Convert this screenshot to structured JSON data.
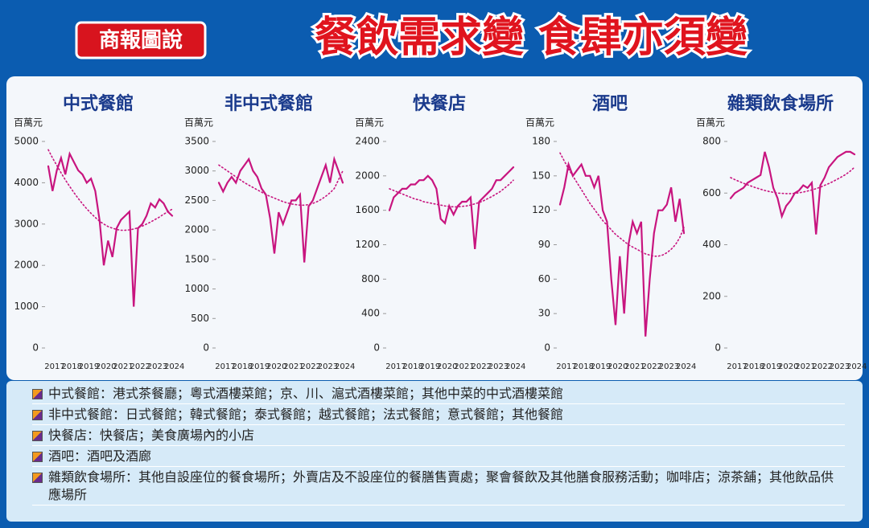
{
  "header": {
    "badge": "商報圖說",
    "title": "餐飲需求變 食肆亦須變"
  },
  "chart_data": [
    {
      "type": "line",
      "title": "中式餐館",
      "ylabel": "百萬元",
      "ylim": [
        0,
        5000
      ],
      "yticks": [
        0,
        1000,
        2000,
        3000,
        4000,
        5000
      ],
      "grid": false,
      "categories": [
        "2017",
        null,
        null,
        null,
        "2018",
        null,
        null,
        null,
        "2019",
        null,
        null,
        null,
        "2020",
        null,
        null,
        null,
        "2021",
        null,
        null,
        null,
        "2022",
        null,
        null,
        null,
        "2023",
        null,
        null,
        null,
        "2024",
        null
      ],
      "series": [
        {
          "color": "#c8157f",
          "values": [
            4400,
            3800,
            4300,
            4600,
            4200,
            4700,
            4500,
            4300,
            4200,
            4000,
            4100,
            3800,
            3100,
            2000,
            2600,
            2200,
            2900,
            3100,
            3200,
            3300,
            1000,
            2900,
            3000,
            3200,
            3500,
            3400,
            3600,
            3500,
            3300,
            3200
          ]
        },
        {
          "color": "#c8157f",
          "dotted": true,
          "values": [
            4800,
            4600,
            4420,
            4240,
            4070,
            3910,
            3760,
            3620,
            3490,
            3370,
            3260,
            3160,
            3070,
            3000,
            2940,
            2900,
            2870,
            2850,
            2850,
            2860,
            2880,
            2910,
            2950,
            3000,
            3050,
            3110,
            3170,
            3240,
            3300,
            3360
          ]
        }
      ]
    },
    {
      "type": "line",
      "title": "非中式餐館",
      "ylabel": "百萬元",
      "ylim": [
        0,
        3500
      ],
      "yticks": [
        0,
        500,
        1000,
        1500,
        2000,
        2500,
        3000,
        3500
      ],
      "grid": false,
      "categories": [
        "2017",
        null,
        null,
        null,
        "2018",
        null,
        null,
        null,
        "2019",
        null,
        null,
        null,
        "2020",
        null,
        null,
        null,
        "2021",
        null,
        null,
        null,
        "2022",
        null,
        null,
        null,
        "2023",
        null,
        null,
        null,
        "2024",
        null
      ],
      "series": [
        {
          "color": "#c8157f",
          "values": [
            2800,
            2650,
            2800,
            2900,
            2800,
            3000,
            3100,
            3200,
            3000,
            2900,
            2700,
            2600,
            2200,
            1600,
            2300,
            2100,
            2300,
            2500,
            2500,
            2600,
            1450,
            2400,
            2500,
            2700,
            2900,
            3100,
            2800,
            3200,
            3000,
            2800
          ]
        },
        {
          "color": "#c8157f",
          "dotted": true,
          "values": [
            3100,
            3050,
            3000,
            2950,
            2900,
            2850,
            2800,
            2760,
            2720,
            2680,
            2640,
            2600,
            2570,
            2540,
            2510,
            2480,
            2460,
            2440,
            2430,
            2420,
            2420,
            2430,
            2450,
            2480,
            2520,
            2570,
            2630,
            2700,
            2850,
            3000
          ]
        }
      ]
    },
    {
      "type": "line",
      "title": "快餐店",
      "ylabel": "百萬元",
      "ylim": [
        0,
        2400
      ],
      "yticks": [
        0,
        400,
        800,
        1200,
        1600,
        2000,
        2400
      ],
      "grid": false,
      "categories": [
        "2017",
        null,
        null,
        null,
        "2018",
        null,
        null,
        null,
        "2019",
        null,
        null,
        null,
        "2020",
        null,
        null,
        null,
        "2021",
        null,
        null,
        null,
        "2022",
        null,
        null,
        null,
        "2023",
        null,
        null,
        null,
        "2024",
        null
      ],
      "series": [
        {
          "color": "#c8157f",
          "values": [
            1600,
            1750,
            1800,
            1850,
            1850,
            1900,
            1900,
            1950,
            1950,
            2000,
            1950,
            1850,
            1500,
            1450,
            1650,
            1550,
            1650,
            1700,
            1700,
            1750,
            1150,
            1700,
            1750,
            1800,
            1850,
            1950,
            1950,
            2000,
            2050,
            2100
          ]
        },
        {
          "color": "#c8157f",
          "dotted": true,
          "values": [
            1850,
            1830,
            1810,
            1790,
            1770,
            1750,
            1730,
            1720,
            1700,
            1690,
            1680,
            1670,
            1660,
            1650,
            1645,
            1640,
            1640,
            1645,
            1650,
            1660,
            1675,
            1690,
            1710,
            1735,
            1760,
            1790,
            1820,
            1860,
            1900,
            1950
          ]
        }
      ]
    },
    {
      "type": "line",
      "title": "酒吧",
      "ylabel": "百萬元",
      "ylim": [
        0,
        180
      ],
      "yticks": [
        0,
        30,
        60,
        90,
        120,
        150,
        180
      ],
      "grid": false,
      "categories": [
        "2017",
        null,
        null,
        null,
        "2018",
        null,
        null,
        null,
        "2019",
        null,
        null,
        null,
        "2020",
        null,
        null,
        null,
        "2021",
        null,
        null,
        null,
        "2022",
        null,
        null,
        null,
        "2023",
        null,
        null,
        null,
        "2024",
        null
      ],
      "series": [
        {
          "color": "#c8157f",
          "values": [
            125,
            140,
            160,
            150,
            155,
            160,
            150,
            150,
            140,
            150,
            120,
            110,
            60,
            20,
            80,
            30,
            90,
            110,
            100,
            110,
            10,
            60,
            100,
            120,
            120,
            125,
            140,
            110,
            130,
            100
          ]
        },
        {
          "color": "#c8157f",
          "dotted": true,
          "values": [
            170,
            163,
            156,
            150,
            144,
            138,
            132,
            126,
            121,
            116,
            111,
            107,
            103,
            99,
            96,
            93,
            90,
            88,
            86,
            84,
            82,
            81,
            80,
            80,
            81,
            83,
            86,
            90,
            96,
            105
          ]
        }
      ]
    },
    {
      "type": "line",
      "title": "雜類飲食場所",
      "ylabel": "百萬元",
      "ylim": [
        0,
        800
      ],
      "yticks": [
        0,
        200,
        400,
        600,
        800
      ],
      "grid": false,
      "categories": [
        "2017",
        null,
        null,
        null,
        "2018",
        null,
        null,
        null,
        "2019",
        null,
        null,
        null,
        "2020",
        null,
        null,
        null,
        "2021",
        null,
        null,
        null,
        "2022",
        null,
        null,
        null,
        "2023",
        null,
        null,
        null,
        "2024",
        null
      ],
      "series": [
        {
          "color": "#c8157f",
          "values": [
            580,
            600,
            610,
            620,
            640,
            650,
            660,
            670,
            760,
            700,
            620,
            580,
            510,
            550,
            570,
            600,
            610,
            630,
            620,
            640,
            440,
            630,
            660,
            700,
            720,
            740,
            750,
            760,
            760,
            750
          ]
        },
        {
          "color": "#c8157f",
          "dotted": true,
          "values": [
            660,
            652,
            645,
            638,
            632,
            626,
            620,
            615,
            610,
            606,
            603,
            600,
            599,
            598,
            598,
            599,
            601,
            604,
            608,
            612,
            617,
            623,
            630,
            637,
            645,
            654,
            663,
            673,
            685,
            700
          ]
        }
      ]
    }
  ],
  "notes": [
    "中式餐館：港式茶餐廳；粵式酒樓菜館；京、川、滬式酒樓菜館；其他中菜的中式酒樓菜館",
    "非中式餐館：日式餐館；韓式餐館；泰式餐館；越式餐館；法式餐館；意式餐館；其他餐館",
    "快餐店：快餐店；美食廣場內的小店",
    "酒吧：酒吧及酒廊",
    "雜類飲食場所：其他自設座位的餐食場所；外賣店及不設座位的餐膳售賣處；聚會餐飲及其他膳食服務活動；咖啡店；涼茶舖；其他飲品供應場所"
  ]
}
